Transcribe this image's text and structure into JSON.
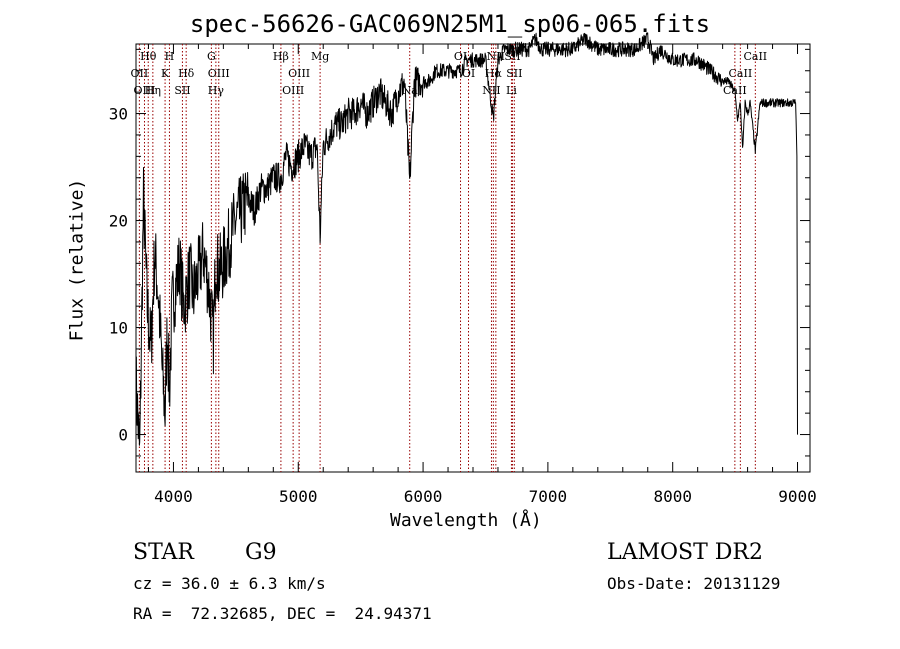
{
  "chart_data": {
    "type": "line",
    "title": "spec-56626-GAC069N25M1_sp06-065.fits",
    "xlabel": "Wavelength (Å)",
    "ylabel": "Flux (relative)",
    "xlim": [
      3700,
      9100
    ],
    "ylim": [
      -3.5,
      36.5
    ],
    "xticks": [
      4000,
      5000,
      6000,
      7000,
      8000,
      9000
    ],
    "yticks": [
      0,
      10,
      20,
      30
    ],
    "x_minor_step": 200,
    "y_minor_step": 2,
    "grid": false,
    "series": [
      {
        "color": "#000000",
        "x": [
          3700,
          3730,
          3760,
          3790,
          3820,
          3850,
          3880,
          3910,
          3933,
          3950,
          3968,
          3990,
          4020,
          4050,
          4080,
          4102,
          4130,
          4160,
          4200,
          4240,
          4280,
          4320,
          4340,
          4360,
          4400,
          4450,
          4500,
          4550,
          4600,
          4650,
          4700,
          4750,
          4800,
          4861,
          4900,
          4950,
          5000,
          5050,
          5100,
          5150,
          5175,
          5200,
          5250,
          5300,
          5350,
          5400,
          5450,
          5500,
          5550,
          5600,
          5650,
          5700,
          5750,
          5800,
          5850,
          5893,
          5930,
          5980,
          6050,
          6100,
          6150,
          6200,
          6250,
          6300,
          6350,
          6400,
          6450,
          6500,
          6563,
          6600,
          6650,
          6700,
          6750,
          6800,
          6850,
          6900,
          6950,
          7000,
          7050,
          7100,
          7150,
          7200,
          7300,
          7400,
          7500,
          7600,
          7700,
          7800,
          7850,
          7900,
          8000,
          8100,
          8200,
          8300,
          8400,
          8450,
          8498,
          8520,
          8542,
          8560,
          8580,
          8600,
          8620,
          8662,
          8700,
          8750,
          8800,
          8850,
          8900,
          8950,
          8985,
          8995,
          9000
        ],
        "y": [
          5,
          -2,
          22,
          12,
          8,
          17,
          13,
          6,
          2,
          10,
          4,
          12,
          14,
          16,
          12,
          13,
          15,
          13,
          15,
          17,
          14,
          9,
          17,
          15,
          16,
          18,
          20,
          21,
          22,
          21,
          23,
          23,
          24,
          24,
          26,
          25,
          26,
          27,
          26,
          27,
          18.5,
          27,
          28,
          29,
          29,
          30,
          30,
          31,
          30,
          31,
          32,
          31,
          30,
          32,
          33,
          23.5,
          33,
          33,
          33,
          34,
          34,
          34,
          34,
          34,
          35,
          35,
          35,
          35,
          29.5,
          35,
          36,
          36,
          36,
          36,
          36,
          37,
          36,
          36,
          36,
          36,
          36,
          36,
          37,
          36,
          36,
          36,
          36,
          37,
          35,
          36,
          35,
          35,
          35,
          34,
          33,
          33,
          32,
          29.5,
          31,
          26.5,
          31,
          30,
          31,
          26.5,
          31,
          31,
          31,
          31,
          31,
          31,
          31,
          26,
          0
        ]
      }
    ],
    "line_markers": [
      {
        "label": "Hθ",
        "wavelength": 3798,
        "row": 0
      },
      {
        "label": "OII",
        "wavelength": 3727,
        "row": 1
      },
      {
        "label": "OIII",
        "wavelength": 3768,
        "row": 2
      },
      {
        "label": "Hη",
        "wavelength": 3835,
        "row": 2
      },
      {
        "label": "H",
        "wavelength": 3968,
        "row": 0
      },
      {
        "label": "K",
        "wavelength": 3933,
        "row": 1
      },
      {
        "label": "Hδ",
        "wavelength": 4102,
        "row": 1
      },
      {
        "label": "SII",
        "wavelength": 4072,
        "row": 2
      },
      {
        "label": "G",
        "wavelength": 4304,
        "row": 0
      },
      {
        "label": "OIII",
        "wavelength": 4363,
        "row": 1
      },
      {
        "label": "Hγ",
        "wavelength": 4340,
        "row": 2
      },
      {
        "label": "Hβ",
        "wavelength": 4861,
        "row": 0
      },
      {
        "label": "OIII",
        "wavelength": 5007,
        "row": 1
      },
      {
        "label": "OIII",
        "wavelength": 4959,
        "row": 2
      },
      {
        "label": "Mg",
        "wavelength": 5175,
        "row": 0
      },
      {
        "label": "Na",
        "wavelength": 5893,
        "row": 2
      },
      {
        "label": "OI",
        "wavelength": 6300,
        "row": 0
      },
      {
        "label": "OI",
        "wavelength": 6364,
        "row": 1
      },
      {
        "label": "NII",
        "wavelength": 6583,
        "row": 0
      },
      {
        "label": "Hα",
        "wavelength": 6563,
        "row": 1
      },
      {
        "label": "NII",
        "wavelength": 6548,
        "row": 2
      },
      {
        "label": "SII",
        "wavelength": 6716,
        "row": 0
      },
      {
        "label": "SII",
        "wavelength": 6731,
        "row": 1
      },
      {
        "label": "Li",
        "wavelength": 6708,
        "row": 2
      },
      {
        "label": "CaII",
        "wavelength": 8662,
        "row": 0
      },
      {
        "label": "CaII",
        "wavelength": 8542,
        "row": 1
      },
      {
        "label": "CaII",
        "wavelength": 8498,
        "row": 2
      }
    ],
    "marker_color": "#990000"
  },
  "info": {
    "object_class": "STAR",
    "subclass": "G9",
    "survey": "LAMOST DR2",
    "redshift": "cz = 36.0 ± 6.3 km/s",
    "obs_date": "Obs-Date: 20131129",
    "radec": "RA =  72.32685, DEC =  24.94371"
  }
}
